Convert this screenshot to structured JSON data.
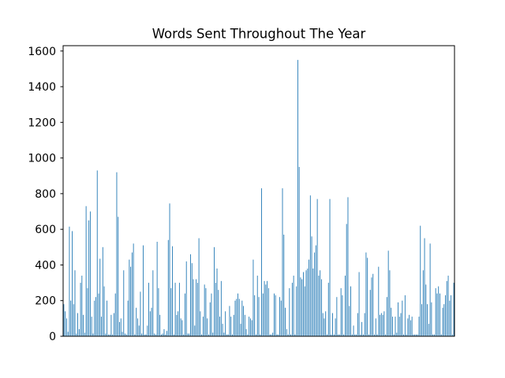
{
  "chart_data": {
    "type": "bar",
    "title": "Words Sent Throughout The Year",
    "xlabel": "",
    "ylabel": "",
    "ylim": [
      0,
      1630
    ],
    "yticks": [
      0,
      200,
      400,
      600,
      800,
      1000,
      1200,
      1400,
      1600
    ],
    "grid": false,
    "bar_color": "#1f77b4",
    "categories_labeled": false,
    "values": [
      180,
      140,
      100,
      25,
      615,
      200,
      590,
      180,
      370,
      15,
      130,
      40,
      300,
      340,
      120,
      20,
      730,
      270,
      650,
      700,
      110,
      15,
      200,
      220,
      930,
      240,
      435,
      110,
      500,
      280,
      15,
      200,
      10,
      10,
      120,
      10,
      130,
      240,
      920,
      670,
      80,
      100,
      25,
      370,
      15,
      10,
      200,
      430,
      390,
      470,
      520,
      10,
      160,
      100,
      60,
      250,
      15,
      510,
      10,
      10,
      60,
      300,
      140,
      160,
      370,
      15,
      10,
      530,
      270,
      120,
      10,
      15,
      40,
      10,
      30,
      540,
      745,
      270,
      505,
      10,
      300,
      120,
      140,
      300,
      100,
      90,
      10,
      240,
      420,
      15,
      15,
      460,
      410,
      320,
      60,
      320,
      300,
      550,
      140,
      10,
      110,
      290,
      270,
      100,
      10,
      190,
      240,
      20,
      500,
      300,
      380,
      260,
      110,
      310,
      70,
      20,
      140,
      10,
      10,
      170,
      110,
      10,
      120,
      200,
      210,
      240,
      210,
      70,
      200,
      170,
      120,
      40,
      10,
      110,
      100,
      90,
      430,
      230,
      10,
      340,
      220,
      10,
      830,
      240,
      310,
      290,
      310,
      270,
      10,
      10,
      20,
      240,
      230,
      10,
      10,
      220,
      200,
      830,
      570,
      160,
      40,
      10,
      270,
      10,
      300,
      340,
      10,
      280,
      1550,
      950,
      330,
      320,
      360,
      280,
      370,
      380,
      430,
      790,
      560,
      380,
      470,
      510,
      770,
      340,
      370,
      320,
      130,
      100,
      140,
      10,
      300,
      770,
      10,
      130,
      10,
      100,
      220,
      10,
      10,
      270,
      230,
      10,
      340,
      630,
      780,
      170,
      280,
      10,
      60,
      10,
      10,
      130,
      360,
      10,
      80,
      10,
      130,
      470,
      440,
      10,
      260,
      330,
      350,
      10,
      100,
      10,
      390,
      120,
      130,
      120,
      140,
      10,
      220,
      480,
      370,
      160,
      110,
      10,
      110,
      20,
      190,
      110,
      130,
      200,
      10,
      230,
      10,
      100,
      120,
      90,
      110,
      10,
      10,
      10,
      10,
      110,
      620,
      180,
      370,
      550,
      290,
      180,
      70,
      520,
      190,
      10,
      10,
      270,
      240,
      280,
      240,
      10,
      160,
      180,
      230,
      310,
      340,
      200,
      230,
      10,
      300
    ]
  }
}
